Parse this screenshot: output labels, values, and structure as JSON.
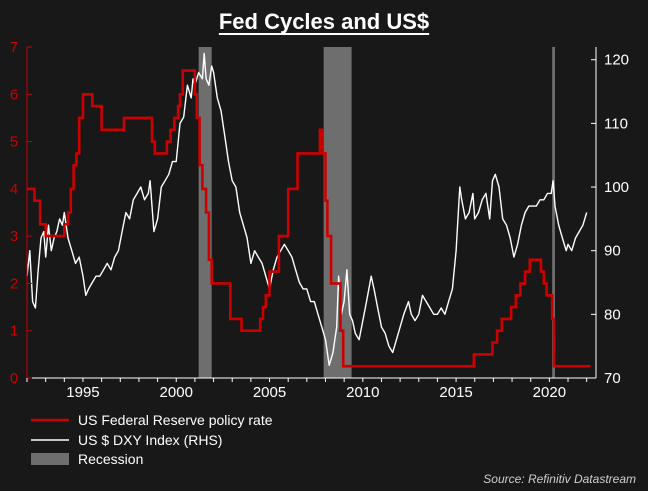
{
  "chart_data": {
    "type": "line",
    "title": "Fed Cycles and US$",
    "source": "Source: Refinitiv Datastream",
    "colors": {
      "fed": "#cc0000",
      "dxy": "#ffffff",
      "recession": "#6e6e6e",
      "background": "#181818",
      "left_axis": "#cc0000",
      "right_axis": "#ffffff"
    },
    "legend_placement": "bottom-left",
    "grid": false,
    "xlim": [
      1992.0,
      2022.5
    ],
    "x_ticks": [
      1995,
      2000,
      2005,
      2010,
      2015,
      2020
    ],
    "x_tick_labels": [
      "1995",
      "2000",
      "2005",
      "2010",
      "2015",
      "2020"
    ],
    "left_axis": {
      "ylim": [
        0,
        7
      ],
      "ticks": [
        0,
        1,
        2,
        3,
        4,
        5,
        6,
        7
      ],
      "tick_labels": [
        "0",
        "1",
        "2",
        "3",
        "4",
        "5",
        "6",
        "7"
      ]
    },
    "right_axis": {
      "ylim": [
        70,
        122
      ],
      "ticks": [
        70,
        80,
        90,
        100,
        110,
        120
      ],
      "tick_labels": [
        "70",
        "80",
        "90",
        "100",
        "110",
        "120"
      ]
    },
    "recessions": [
      [
        2001.2,
        2001.9
      ],
      [
        2007.9,
        2009.4
      ],
      [
        2020.15,
        2020.3
      ]
    ],
    "series": [
      {
        "name": "US Federal Reserve policy rate",
        "axis": "left",
        "style": "step",
        "x": [
          1992.0,
          1992.4,
          1992.7,
          1993.0,
          1994.0,
          1994.2,
          1994.35,
          1994.5,
          1994.65,
          1994.8,
          1995.0,
          1995.5,
          1996.0,
          1997.2,
          1998.7,
          1998.85,
          1999.0,
          1999.5,
          1999.7,
          1999.9,
          2000.1,
          2000.2,
          2000.35,
          2001.0,
          2001.1,
          2001.25,
          2001.4,
          2001.6,
          2001.75,
          2001.9,
          2002.9,
          2003.5,
          2004.5,
          2004.65,
          2004.8,
          2005.0,
          2005.5,
          2006.0,
          2006.5,
          2007.7,
          2007.85,
          2008.0,
          2008.1,
          2008.3,
          2008.8,
          2008.95,
          2015.95,
          2016.95,
          2017.2,
          2017.45,
          2017.95,
          2018.2,
          2018.45,
          2018.7,
          2018.95,
          2019.55,
          2019.7,
          2019.85,
          2020.15,
          2020.25,
          2022.0
        ],
        "values": [
          4.0,
          3.75,
          3.25,
          3.0,
          3.25,
          3.5,
          4.0,
          4.5,
          4.75,
          5.5,
          6.0,
          5.75,
          5.25,
          5.5,
          5.0,
          4.75,
          4.75,
          5.0,
          5.25,
          5.5,
          5.75,
          6.0,
          6.5,
          6.0,
          5.5,
          4.5,
          4.0,
          3.5,
          2.5,
          2.0,
          1.25,
          1.0,
          1.25,
          1.5,
          1.75,
          2.25,
          3.0,
          4.0,
          4.75,
          5.25,
          4.75,
          3.75,
          3.0,
          2.0,
          1.0,
          0.25,
          0.5,
          0.75,
          1.0,
          1.25,
          1.5,
          1.75,
          2.0,
          2.25,
          2.5,
          2.25,
          2.0,
          1.75,
          1.25,
          0.25,
          0.25
        ]
      },
      {
        "name": "US $ DXY Index (RHS)",
        "axis": "right",
        "style": "line",
        "x": [
          1992.0,
          1992.15,
          1992.3,
          1992.45,
          1992.6,
          1992.75,
          1992.9,
          1993.0,
          1993.15,
          1993.3,
          1993.45,
          1993.6,
          1993.75,
          1993.9,
          1994.0,
          1994.2,
          1994.4,
          1994.6,
          1994.8,
          1995.0,
          1995.15,
          1995.3,
          1995.5,
          1995.7,
          1995.9,
          1996.1,
          1996.3,
          1996.5,
          1996.7,
          1996.9,
          1997.1,
          1997.3,
          1997.5,
          1997.7,
          1997.9,
          1998.1,
          1998.3,
          1998.5,
          1998.6,
          1998.7,
          1998.8,
          1999.0,
          1999.2,
          1999.4,
          1999.6,
          1999.8,
          2000.0,
          2000.2,
          2000.4,
          2000.6,
          2000.8,
          2000.9,
          2001.0,
          2001.2,
          2001.4,
          2001.5,
          2001.6,
          2001.75,
          2001.9,
          2002.0,
          2002.2,
          2002.4,
          2002.6,
          2002.8,
          2003.0,
          2003.2,
          2003.4,
          2003.6,
          2003.8,
          2004.0,
          2004.2,
          2004.4,
          2004.6,
          2004.8,
          2005.0,
          2005.2,
          2005.4,
          2005.6,
          2005.8,
          2006.0,
          2006.2,
          2006.4,
          2006.6,
          2006.8,
          2007.0,
          2007.2,
          2007.4,
          2007.6,
          2007.8,
          2008.0,
          2008.2,
          2008.4,
          2008.5,
          2008.6,
          2008.7,
          2008.85,
          2009.0,
          2009.15,
          2009.3,
          2009.45,
          2009.6,
          2009.8,
          2010.0,
          2010.2,
          2010.45,
          2010.6,
          2010.8,
          2011.0,
          2011.2,
          2011.4,
          2011.6,
          2011.8,
          2012.0,
          2012.2,
          2012.45,
          2012.6,
          2012.8,
          2013.0,
          2013.2,
          2013.4,
          2013.6,
          2013.8,
          2014.0,
          2014.2,
          2014.4,
          2014.6,
          2014.8,
          2015.0,
          2015.2,
          2015.3,
          2015.5,
          2015.7,
          2015.9,
          2016.0,
          2016.2,
          2016.4,
          2016.6,
          2016.8,
          2016.95,
          2017.1,
          2017.3,
          2017.5,
          2017.7,
          2017.9,
          2018.1,
          2018.3,
          2018.5,
          2018.7,
          2018.9,
          2019.1,
          2019.3,
          2019.5,
          2019.7,
          2019.9,
          2020.1,
          2020.2,
          2020.3,
          2020.5,
          2020.7,
          2020.9,
          2021.0,
          2021.2,
          2021.4,
          2021.6,
          2021.8,
          2022.0
        ],
        "values": [
          86,
          90,
          82,
          81,
          87,
          92,
          93,
          89,
          94,
          90,
          92,
          93,
          95,
          94,
          96,
          92,
          90,
          88,
          89,
          86,
          83,
          84,
          85,
          86,
          86,
          87,
          88,
          87,
          89,
          90,
          93,
          96,
          95,
          98,
          99,
          100,
          98,
          99,
          101,
          97,
          93,
          95,
          100,
          101,
          102,
          104,
          104,
          110,
          111,
          116,
          114,
          117,
          116,
          118,
          117,
          121,
          117,
          116,
          119,
          118,
          114,
          112,
          108,
          104,
          101,
          100,
          96,
          94,
          92,
          88,
          90,
          89,
          88,
          86,
          84,
          87,
          89,
          90,
          91,
          90,
          89,
          87,
          85,
          84,
          84,
          82,
          82,
          80,
          78,
          76,
          72,
          74,
          76,
          78,
          86,
          80,
          82,
          87,
          80,
          79,
          77,
          76,
          79,
          82,
          86,
          84,
          81,
          78,
          77,
          75,
          74,
          76,
          78,
          80,
          82,
          80,
          79,
          80,
          83,
          82,
          81,
          80,
          80,
          81,
          80,
          82,
          84,
          90,
          100,
          98,
          95,
          96,
          99,
          95,
          96,
          98,
          99,
          95,
          101,
          102,
          100,
          95,
          94,
          92,
          89,
          91,
          94,
          96,
          97,
          97,
          97,
          98,
          98,
          99,
          99,
          101,
          97,
          94,
          92,
          90,
          91,
          90,
          92,
          93,
          94,
          96
        ]
      },
      {
        "name": "Recession",
        "type": "band"
      }
    ]
  }
}
